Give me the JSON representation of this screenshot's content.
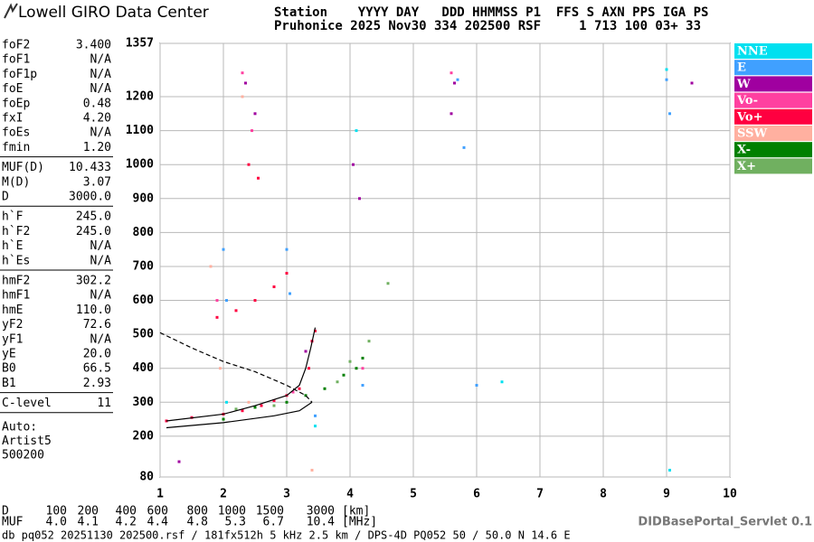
{
  "header": {
    "logo": "Lowell GIRO Data Center",
    "line1": "Station    YYYY DAY   DDD HHMMSS P1  FFS S AXN PPS IGA PS",
    "line2": "Pruhonice 2025 Nov30 334 202500 RSF     1 713 100 03+ 33"
  },
  "params": [
    [
      [
        "foF2",
        "3.400"
      ],
      [
        "foF1",
        "N/A"
      ],
      [
        "foF1p",
        "N/A"
      ],
      [
        "foE",
        "N/A"
      ],
      [
        "foEp",
        "0.48"
      ],
      [
        "fxI",
        "4.20"
      ],
      [
        "foEs",
        "N/A"
      ],
      [
        "fmin",
        "1.20"
      ]
    ],
    [
      [
        "MUF(D)",
        "10.433"
      ],
      [
        "M(D)",
        "3.07"
      ],
      [
        "D",
        "3000.0"
      ]
    ],
    [
      [
        "h`F",
        "245.0"
      ],
      [
        "h`F2",
        "245.0"
      ],
      [
        "h`E",
        "N/A"
      ],
      [
        "h`Es",
        "N/A"
      ]
    ],
    [
      [
        "hmF2",
        "302.2"
      ],
      [
        "hmF1",
        "N/A"
      ],
      [
        "hmE",
        "110.0"
      ],
      [
        "yF2",
        "72.6"
      ],
      [
        "yF1",
        "N/A"
      ],
      [
        "yE",
        "20.0"
      ],
      [
        "B0",
        "66.5"
      ],
      [
        "B1",
        "2.93"
      ]
    ],
    [
      [
        "C-level",
        "11"
      ]
    ]
  ],
  "notes": [
    "Auto:",
    "Artist5",
    "500200"
  ],
  "chart_data": {
    "type": "scatter",
    "xlim": [
      1,
      10
    ],
    "xticks": [
      1,
      2,
      3,
      4,
      5,
      6,
      7,
      8,
      9,
      10
    ],
    "ylim": [
      80,
      1357
    ],
    "yticks": [
      80,
      200,
      300,
      400,
      500,
      600,
      700,
      800,
      900,
      1000,
      1100,
      1200,
      1357
    ],
    "grid": true,
    "series": [
      {
        "name": "NNE",
        "color": "#00e0f0",
        "x": [
          9.0,
          9.05,
          3.45,
          6.4,
          2.05,
          4.1
        ],
        "y": [
          1280,
          100,
          230,
          360,
          300,
          1100
        ]
      },
      {
        "name": "E",
        "color": "#40a0ff",
        "x": [
          2.0,
          2.05,
          3.0,
          3.05,
          3.45,
          4.2,
          5.7,
          5.8,
          6.0,
          9.0,
          9.05
        ],
        "y": [
          750,
          600,
          750,
          620,
          260,
          350,
          1250,
          1050,
          350,
          1250,
          1150
        ]
      },
      {
        "name": "W",
        "color": "#a000a0",
        "x": [
          2.35,
          2.5,
          4.05,
          4.15,
          5.6,
          5.65,
          3.3,
          1.3,
          9.4
        ],
        "y": [
          1240,
          1150,
          1000,
          900,
          1150,
          1240,
          450,
          125,
          1240
        ]
      },
      {
        "name": "Vo-",
        "color": "#ff40a0",
        "x": [
          1.9,
          2.3,
          2.45,
          5.6,
          3.1,
          4.2
        ],
        "y": [
          600,
          1270,
          1100,
          1270,
          330,
          400
        ]
      },
      {
        "name": "Vo+",
        "color": "#ff0040",
        "x": [
          1.1,
          1.5,
          2.0,
          2.3,
          2.6,
          2.8,
          3.0,
          3.2,
          3.35,
          3.4,
          3.45,
          1.9,
          2.2,
          2.5,
          2.8,
          3.0,
          2.4,
          2.55
        ],
        "y": [
          245,
          255,
          265,
          275,
          290,
          305,
          320,
          340,
          400,
          480,
          510,
          550,
          570,
          600,
          640,
          680,
          1000,
          960
        ]
      },
      {
        "name": "SSW",
        "color": "#ffb0a0",
        "x": [
          1.8,
          2.3,
          1.95,
          2.4,
          3.4
        ],
        "y": [
          700,
          1200,
          400,
          300,
          100
        ]
      },
      {
        "name": "X-",
        "color": "#008000",
        "x": [
          2.0,
          2.5,
          3.0,
          3.3,
          3.6,
          3.9,
          4.1,
          4.2
        ],
        "y": [
          250,
          285,
          300,
          320,
          340,
          380,
          400,
          430
        ]
      },
      {
        "name": "X+",
        "color": "#70b060",
        "x": [
          2.2,
          2.8,
          3.8,
          4.0,
          4.3,
          4.6
        ],
        "y": [
          280,
          290,
          360,
          420,
          480,
          650
        ]
      }
    ],
    "curves": [
      {
        "style": "solid",
        "x": [
          1.1,
          2.0,
          2.8,
          3.2,
          3.4
        ],
        "y": [
          225,
          240,
          260,
          275,
          300
        ]
      },
      {
        "style": "solid",
        "x": [
          1.1,
          2.0,
          2.5,
          3.0,
          3.2,
          3.3,
          3.38,
          3.45
        ],
        "y": [
          245,
          265,
          290,
          320,
          350,
          400,
          460,
          520
        ]
      },
      {
        "style": "dashed",
        "x": [
          1.0,
          1.5,
          2.0,
          2.5,
          3.0,
          3.3,
          3.4
        ],
        "y": [
          505,
          460,
          420,
          390,
          350,
          320,
          300
        ]
      }
    ]
  },
  "footer": {
    "d_row": [
      "D",
      "100",
      "200",
      "400",
      "600",
      "800",
      "1000",
      "1500",
      "3000",
      "[km]"
    ],
    "muf_row": [
      "MUF",
      "4.0",
      "4.1",
      "4.2",
      "4.4",
      "4.8",
      "5.3",
      "6.7",
      "10.4",
      "[MHz]"
    ],
    "source": "db pq052 20251130 202500.rsf / 181fx512h 5 kHz 2.5 km / DPS-4D PQ052 50 / 50.0 N 14.6 E",
    "servlet": "DIDBasePortal_Servlet 0.1"
  }
}
